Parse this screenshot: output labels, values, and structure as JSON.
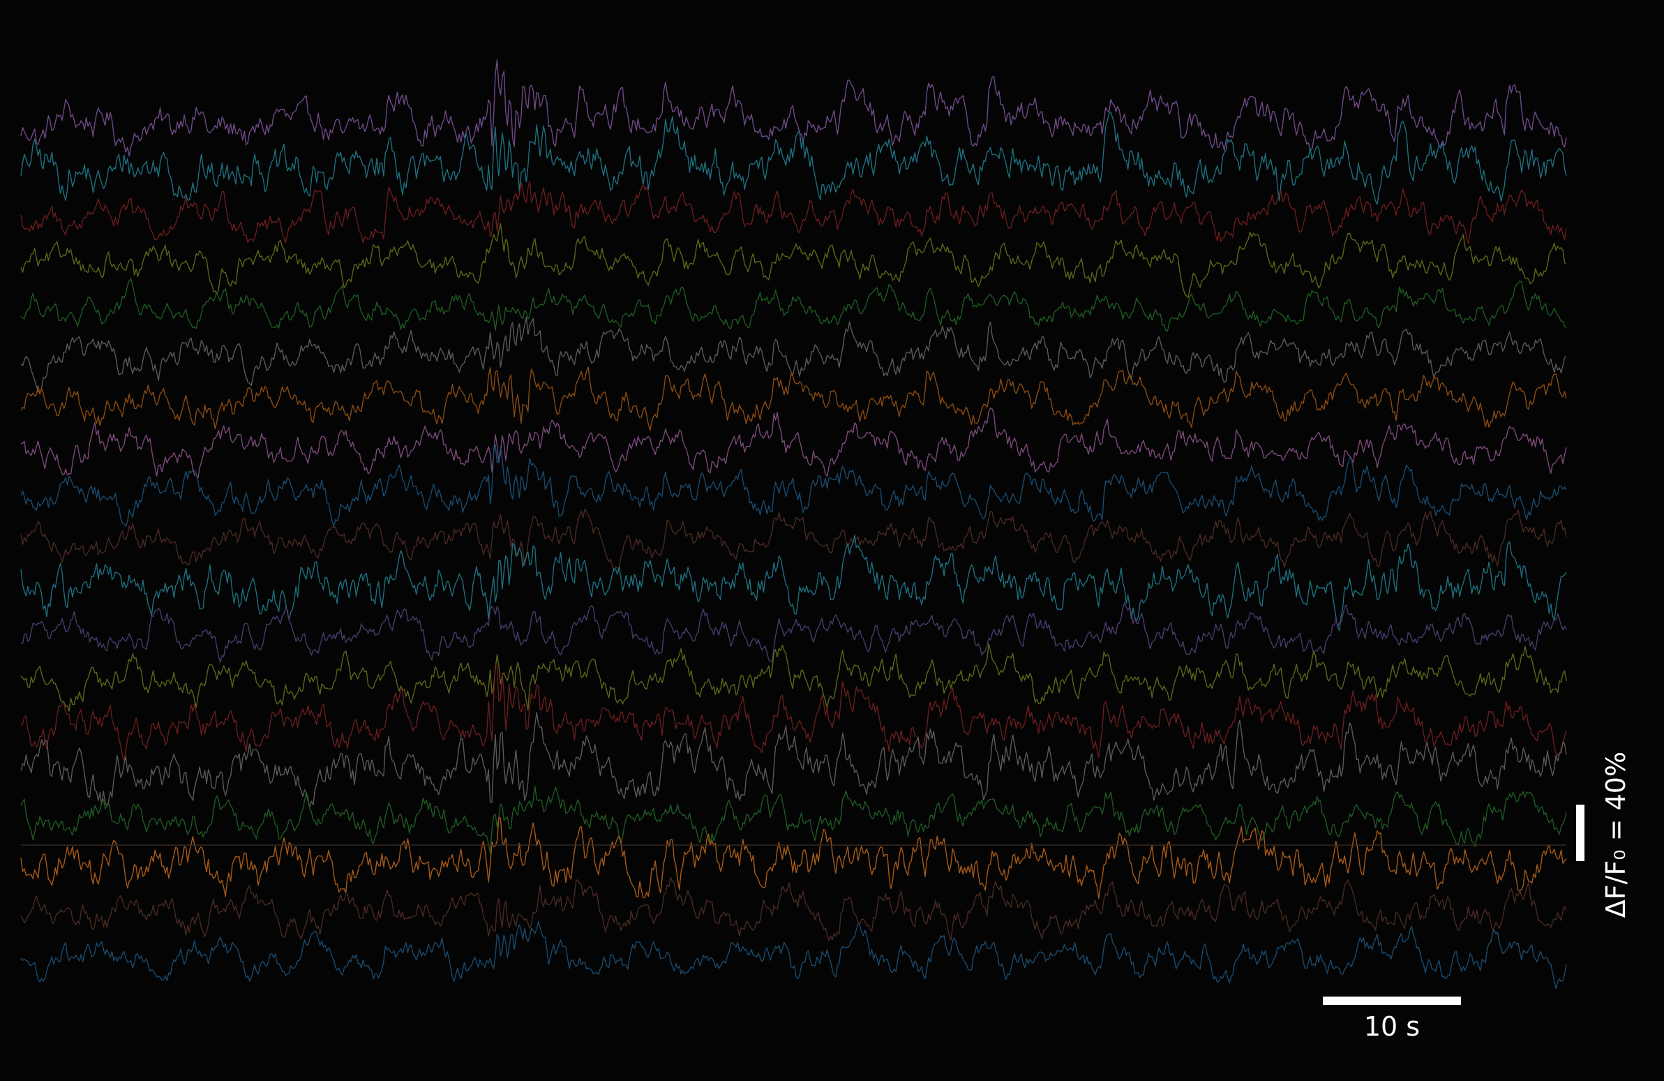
{
  "chart_data": {
    "type": "line",
    "title": "",
    "xlabel": "",
    "ylabel": "",
    "background": "#040404",
    "duration_s": 100,
    "grid": false,
    "legend": "none",
    "scale_bars": {
      "time": {
        "value_s": 10,
        "label": "10 s"
      },
      "amplitude": {
        "value_percent": 40,
        "label": "ΔF/F₀ = 40%"
      }
    },
    "events_s": [
      23.5,
      30.5,
      32.8,
      35.8,
      41.5,
      48.6,
      53.0,
      58.5,
      62.5,
      70.0,
      78.5,
      85.5,
      89.0,
      96.0
    ],
    "series": [
      {
        "id": "t1",
        "color": "#6f4a87",
        "activity": 1.0,
        "noise": 0.22
      },
      {
        "id": "t2",
        "color": "#1d6f7f",
        "activity": 0.8,
        "noise": 0.28
      },
      {
        "id": "t3",
        "color": "#6a1d1d",
        "activity": 0.55,
        "noise": 0.18
      },
      {
        "id": "t4",
        "color": "#5f6418",
        "activity": 0.45,
        "noise": 0.16
      },
      {
        "id": "t5",
        "color": "#1e5a22",
        "activity": 0.25,
        "noise": 0.14
      },
      {
        "id": "t6",
        "color": "#5a5a5a",
        "activity": 0.55,
        "noise": 0.18
      },
      {
        "id": "t7",
        "color": "#8a4a12",
        "activity": 0.6,
        "noise": 0.18
      },
      {
        "id": "t8",
        "color": "#7a4a7a",
        "activity": 0.5,
        "noise": 0.18
      },
      {
        "id": "t9",
        "color": "#1a4a6e",
        "activity": 0.6,
        "noise": 0.18
      },
      {
        "id": "t10",
        "color": "#4a2a22",
        "activity": 0.45,
        "noise": 0.16
      },
      {
        "id": "t11",
        "color": "#1d6f7f",
        "activity": 0.7,
        "noise": 0.26
      },
      {
        "id": "t12",
        "color": "#4a3a6a",
        "activity": 0.3,
        "noise": 0.16
      },
      {
        "id": "t13",
        "color": "#5f6418",
        "activity": 0.55,
        "noise": 0.18
      },
      {
        "id": "t14",
        "color": "#6a1d1d",
        "activity": 0.8,
        "noise": 0.22
      },
      {
        "id": "t15",
        "color": "#5a5a5a",
        "activity": 0.9,
        "noise": 0.26
      },
      {
        "id": "t16",
        "color": "#1e5a22",
        "activity": 0.45,
        "noise": 0.18
      },
      {
        "id": "t17",
        "color": "#a85a18",
        "activity": 0.55,
        "noise": 0.26
      },
      {
        "id": "t18",
        "color": "#4a2a22",
        "activity": 0.45,
        "noise": 0.18
      },
      {
        "id": "t19",
        "color": "#1a4a6e",
        "activity": 0.4,
        "noise": 0.16
      }
    ],
    "baseline_color": "#3a2a24"
  }
}
